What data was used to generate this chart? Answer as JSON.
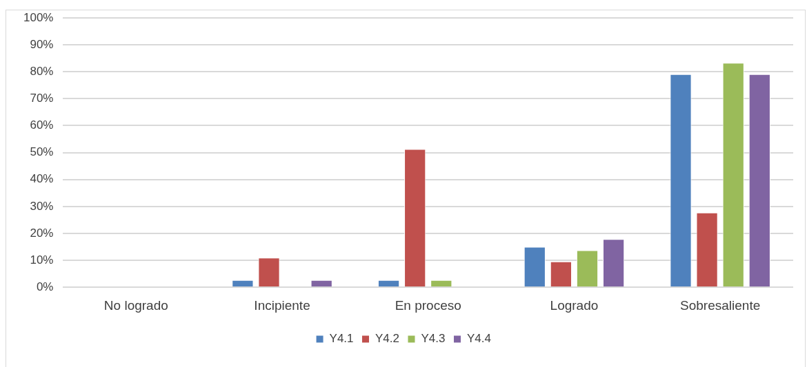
{
  "chart_data": {
    "type": "bar",
    "categories": [
      "No logrado",
      "Incipiente",
      "En proceso",
      "Logrado",
      "Sobresaliente"
    ],
    "series": [
      {
        "name": "Y4.1",
        "color": "#4f81bd",
        "values": [
          0,
          2.7,
          2.7,
          15.0,
          79.1
        ]
      },
      {
        "name": "Y4.2",
        "color": "#c0504d",
        "values": [
          0,
          11.0,
          51.3,
          9.6,
          27.7
        ]
      },
      {
        "name": "Y4.3",
        "color": "#9bbb59",
        "values": [
          0,
          0,
          2.7,
          13.7,
          83.3
        ]
      },
      {
        "name": "Y4.4",
        "color": "#8064a2",
        "values": [
          0,
          2.7,
          0,
          17.9,
          79.1
        ]
      }
    ],
    "ylim": [
      0,
      100
    ],
    "yticks": [
      {
        "value": 0,
        "label": "0%"
      },
      {
        "value": 10,
        "label": "10%"
      },
      {
        "value": 20,
        "label": "20%"
      },
      {
        "value": 30,
        "label": "30%"
      },
      {
        "value": 40,
        "label": "40%"
      },
      {
        "value": 50,
        "label": "50%"
      },
      {
        "value": 60,
        "label": "60%"
      },
      {
        "value": 70,
        "label": "70%"
      },
      {
        "value": 80,
        "label": "80%"
      },
      {
        "value": 90,
        "label": "90%"
      },
      {
        "value": 100,
        "label": "100%"
      }
    ],
    "grid": "y",
    "legend": "bottom"
  }
}
